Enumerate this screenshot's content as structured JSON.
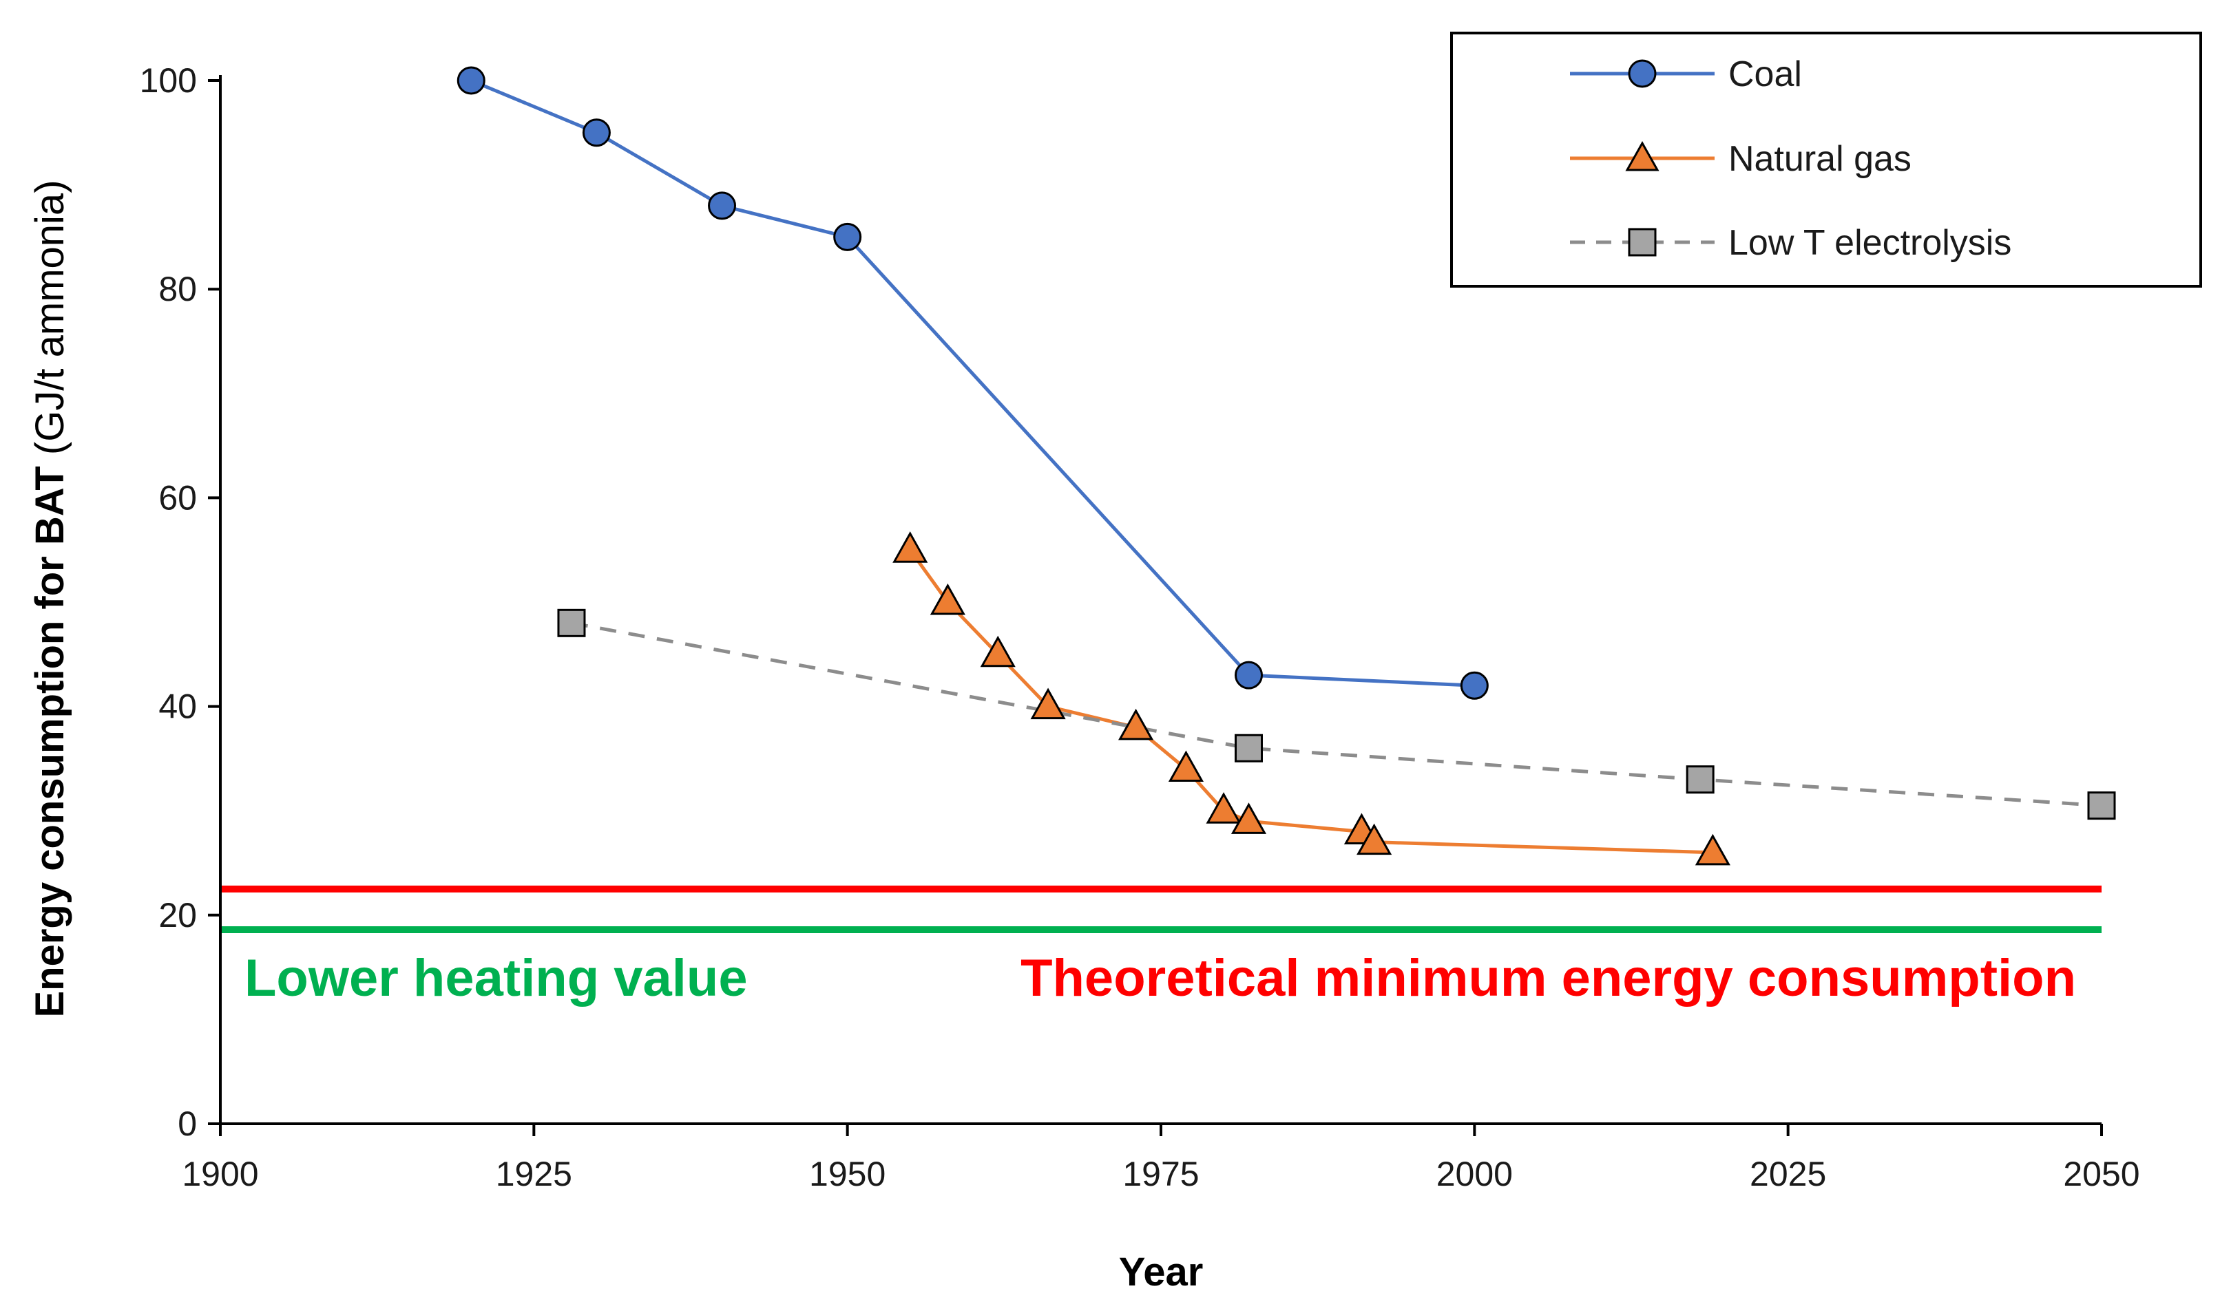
{
  "chart_data": {
    "type": "line",
    "title": "",
    "xlabel": "Year",
    "ylabel_bold": "Energy consumption for BAT",
    "ylabel_rest": " (GJ/t ammonia)",
    "xlim": [
      1900,
      2050
    ],
    "ylim": [
      0,
      100
    ],
    "xticks": [
      "1900",
      "1925",
      "1950",
      "1975",
      "2000",
      "2025",
      "2050"
    ],
    "yticks": [
      "0",
      "20",
      "40",
      "60",
      "80",
      "100"
    ],
    "legend_position": "top-right",
    "series": [
      {
        "name": "Coal",
        "marker": "circle",
        "line": "solid",
        "color": "#4472C4",
        "x": [
          1920,
          1930,
          1940,
          1950,
          1982,
          2000
        ],
        "y": [
          100,
          95,
          88,
          85,
          43,
          42
        ]
      },
      {
        "name": "Natural gas",
        "marker": "triangle",
        "line": "solid",
        "color": "#ED7D31",
        "x": [
          1955,
          1958,
          1962,
          1966,
          1973,
          1977,
          1980,
          1982,
          1991,
          1992,
          2019
        ],
        "y": [
          55,
          50,
          45,
          40,
          38,
          34,
          30,
          29,
          28,
          27,
          26
        ]
      },
      {
        "name": "Low T electrolysis",
        "marker": "square",
        "line": "dashed",
        "color": "#A5A5A5",
        "x": [
          1928,
          1982,
          2018,
          2050
        ],
        "y": [
          48,
          36,
          33,
          30.5
        ]
      }
    ],
    "reference_lines": [
      {
        "name": "Theoretical minimum energy consumption",
        "y": 22.5,
        "color": "#FF0000"
      },
      {
        "name": "Lower heating value",
        "y": 18.6,
        "color": "#00B050"
      }
    ]
  }
}
